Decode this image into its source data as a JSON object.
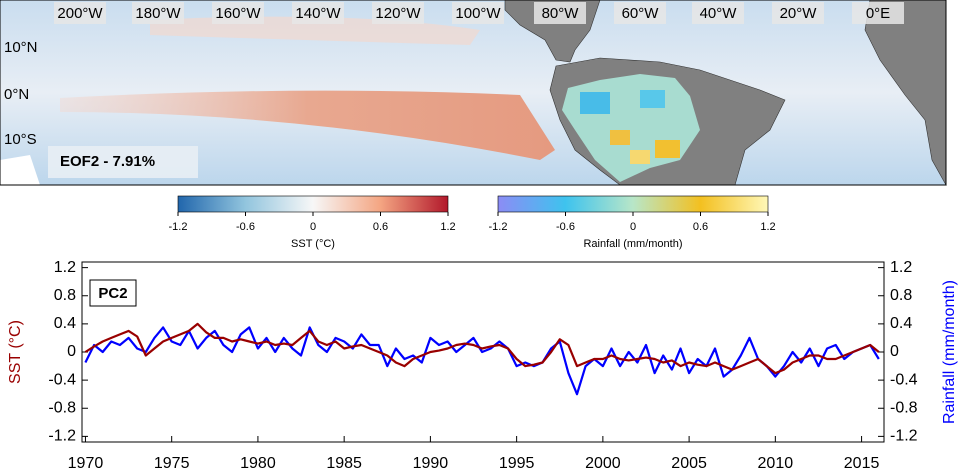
{
  "map": {
    "lon_labels": [
      "200°W",
      "180°W",
      "160°W",
      "140°W",
      "120°W",
      "100°W",
      "80°W",
      "60°W",
      "40°W",
      "20°W",
      "0°E"
    ],
    "lat_labels": [
      "10°N",
      "0°N",
      "10°S"
    ],
    "panel_label": "EOF2 - 7.91%"
  },
  "colorbars": [
    {
      "label": "SST (°C)",
      "ticks": [
        -1.2,
        -0.6,
        0,
        0.6,
        1.2
      ]
    },
    {
      "label": "Rainfall (mm/month)",
      "ticks": [
        -1.2,
        -0.6,
        0,
        0.6,
        1.2
      ]
    }
  ],
  "chart_data": {
    "type": "line",
    "panel_label": "PC2",
    "ylabel": "SST (°C)",
    "y2label": "Rainfall (mm/month)",
    "x": [
      1970,
      1970.5,
      1971,
      1971.5,
      1972,
      1972.5,
      1973,
      1973.5,
      1974,
      1974.5,
      1975,
      1975.5,
      1976,
      1976.5,
      1977,
      1977.5,
      1978,
      1978.5,
      1979,
      1979.5,
      1980,
      1980.5,
      1981,
      1981.5,
      1982,
      1982.5,
      1983,
      1983.5,
      1984,
      1984.5,
      1985,
      1985.5,
      1986,
      1986.5,
      1987,
      1987.5,
      1988,
      1988.5,
      1989,
      1989.5,
      1990,
      1990.5,
      1991,
      1991.5,
      1992,
      1992.5,
      1993,
      1993.5,
      1994,
      1994.5,
      1995,
      1995.5,
      1996,
      1996.5,
      1997,
      1997.5,
      1998,
      1998.5,
      1999,
      1999.5,
      2000,
      2000.5,
      2001,
      2001.5,
      2002,
      2002.5,
      2003,
      2003.5,
      2004,
      2004.5,
      2005,
      2005.5,
      2006,
      2006.5,
      2007,
      2007.5,
      2008,
      2008.5,
      2009,
      2009.5,
      2010,
      2010.5,
      2011,
      2011.5,
      2012,
      2012.5,
      2013,
      2013.5,
      2014,
      2014.5,
      2015,
      2015.5,
      2016
    ],
    "series": [
      {
        "name": "SST",
        "color": "#990000",
        "values": [
          0.0,
          0.08,
          0.15,
          0.2,
          0.25,
          0.3,
          0.22,
          -0.05,
          0.05,
          0.15,
          0.2,
          0.25,
          0.3,
          0.4,
          0.28,
          0.2,
          0.2,
          0.15,
          0.18,
          0.15,
          0.12,
          0.15,
          0.1,
          0.12,
          0.1,
          0.2,
          0.3,
          0.15,
          0.1,
          0.15,
          0.05,
          0.08,
          0.1,
          0.05,
          0.0,
          -0.05,
          -0.15,
          -0.2,
          -0.1,
          -0.05,
          0.0,
          0.02,
          0.05,
          0.1,
          0.12,
          0.1,
          0.05,
          0.08,
          0.1,
          0.05,
          -0.1,
          -0.2,
          -0.18,
          -0.15,
          0.0,
          0.18,
          0.1,
          -0.2,
          -0.15,
          -0.1,
          -0.1,
          -0.05,
          -0.1,
          -0.12,
          -0.1,
          -0.08,
          -0.1,
          -0.15,
          -0.12,
          -0.2,
          -0.15,
          -0.18,
          -0.2,
          -0.15,
          -0.2,
          -0.25,
          -0.2,
          -0.15,
          -0.1,
          -0.2,
          -0.3,
          -0.25,
          -0.15,
          -0.1,
          -0.05,
          -0.05,
          -0.1,
          -0.1,
          -0.05,
          0.0,
          0.05,
          0.1,
          0.0
        ]
      },
      {
        "name": "Rainfall",
        "color": "#0000ff",
        "axis": "y2",
        "values": [
          -0.15,
          0.1,
          0.0,
          0.15,
          0.1,
          0.2,
          0.05,
          0.0,
          0.2,
          0.35,
          0.15,
          0.1,
          0.3,
          0.05,
          0.2,
          0.3,
          0.1,
          0.0,
          0.25,
          0.35,
          0.05,
          0.2,
          0.0,
          0.2,
          0.05,
          -0.05,
          0.35,
          0.1,
          0.0,
          0.2,
          0.15,
          0.05,
          0.25,
          0.1,
          0.1,
          -0.2,
          0.05,
          -0.1,
          -0.05,
          -0.15,
          0.2,
          0.1,
          0.15,
          0.0,
          0.1,
          0.2,
          0.0,
          0.05,
          0.15,
          0.05,
          -0.2,
          -0.15,
          -0.2,
          -0.15,
          0.05,
          0.15,
          -0.3,
          -0.6,
          -0.2,
          -0.1,
          -0.2,
          0.05,
          -0.2,
          0.0,
          -0.15,
          0.1,
          -0.3,
          -0.05,
          -0.25,
          0.05,
          -0.3,
          -0.1,
          -0.2,
          0.05,
          -0.35,
          -0.25,
          -0.05,
          0.2,
          -0.1,
          -0.2,
          -0.35,
          -0.2,
          0.0,
          -0.15,
          0.05,
          -0.2,
          0.05,
          0.1,
          -0.1,
          0.0,
          0.05,
          0.1,
          -0.1
        ]
      }
    ],
    "xlim": [
      1969.8,
      2016.3
    ],
    "xticks": [
      1970,
      1975,
      1980,
      1985,
      1990,
      1995,
      2000,
      2005,
      2010,
      2015
    ],
    "ylim": [
      -1.28,
      1.28
    ],
    "yticks": [
      -1.2,
      -0.8,
      -0.4,
      0,
      0.4,
      0.8,
      1.2
    ],
    "y2lim": [
      -1.28,
      1.28
    ],
    "y2ticks": [
      -1.2,
      -0.8,
      -0.4,
      0,
      0.4,
      0.8,
      1.2
    ]
  }
}
